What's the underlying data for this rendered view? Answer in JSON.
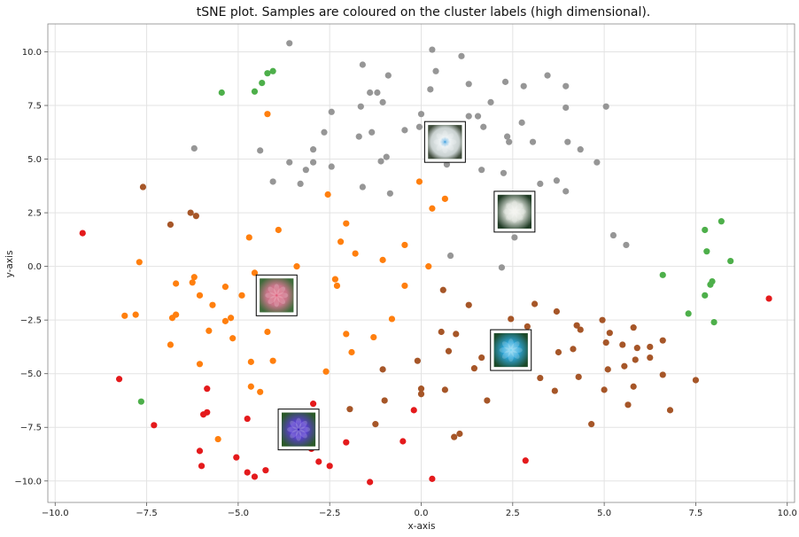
{
  "chart_data": {
    "type": "scatter",
    "title": "tSNE plot. Samples are coloured on the cluster labels (high dimensional).",
    "xlabel": "x-axis",
    "ylabel": "y-axis",
    "xlim": [
      -10.2,
      10.2
    ],
    "ylim": [
      -11.0,
      11.3
    ],
    "grid": true,
    "xticks": [
      -10.0,
      -7.5,
      -5.0,
      -2.5,
      0.0,
      2.5,
      5.0,
      7.5,
      10.0
    ],
    "xtick_labels": [
      "−10.0",
      "−7.5",
      "−5.0",
      "−2.5",
      "0.0",
      "2.5",
      "5.0",
      "7.5",
      "10.0"
    ],
    "yticks": [
      -10.0,
      -7.5,
      -5.0,
      -2.5,
      0.0,
      2.5,
      5.0,
      7.5,
      10.0
    ],
    "ytick_labels": [
      "−10.0",
      "−7.5",
      "−5.0",
      "−2.5",
      "0.0",
      "2.5",
      "5.0",
      "7.5",
      "10.0"
    ],
    "series": [
      {
        "color": "#969696",
        "points": [
          [
            -3.6,
            10.4
          ],
          [
            0.3,
            10.1
          ],
          [
            1.1,
            9.8
          ],
          [
            0.4,
            9.1
          ],
          [
            -1.6,
            9.4
          ],
          [
            -0.9,
            8.9
          ],
          [
            3.45,
            8.9
          ],
          [
            1.3,
            8.5
          ],
          [
            2.3,
            8.6
          ],
          [
            2.8,
            8.4
          ],
          [
            3.95,
            8.4
          ],
          [
            0.25,
            8.25
          ],
          [
            -1.4,
            8.1
          ],
          [
            -1.2,
            8.1
          ],
          [
            -1.05,
            7.65
          ],
          [
            -1.65,
            7.45
          ],
          [
            1.9,
            7.65
          ],
          [
            5.05,
            7.45
          ],
          [
            3.95,
            7.4
          ],
          [
            -2.45,
            7.2
          ],
          [
            0.0,
            7.1
          ],
          [
            1.3,
            7.0
          ],
          [
            1.55,
            7.0
          ],
          [
            2.75,
            6.7
          ],
          [
            1.7,
            6.5
          ],
          [
            -0.45,
            6.35
          ],
          [
            -0.05,
            6.5
          ],
          [
            -2.65,
            6.25
          ],
          [
            -1.35,
            6.25
          ],
          [
            -1.7,
            6.05
          ],
          [
            2.35,
            6.05
          ],
          [
            -2.95,
            5.45
          ],
          [
            -4.4,
            5.4
          ],
          [
            -6.2,
            5.5
          ],
          [
            2.4,
            5.8
          ],
          [
            3.05,
            5.8
          ],
          [
            4.0,
            5.8
          ],
          [
            4.35,
            5.45
          ],
          [
            -0.95,
            5.1
          ],
          [
            -1.1,
            4.9
          ],
          [
            -2.95,
            4.85
          ],
          [
            -3.6,
            4.85
          ],
          [
            -2.45,
            4.65
          ],
          [
            -3.15,
            4.5
          ],
          [
            0.7,
            4.75
          ],
          [
            1.65,
            4.5
          ],
          [
            2.25,
            4.35
          ],
          [
            4.8,
            4.85
          ],
          [
            -4.05,
            3.95
          ],
          [
            -3.3,
            3.85
          ],
          [
            3.25,
            3.85
          ],
          [
            3.7,
            4.0
          ],
          [
            -1.6,
            3.7
          ],
          [
            -0.85,
            3.4
          ],
          [
            3.95,
            3.5
          ],
          [
            0.8,
            0.5
          ],
          [
            2.2,
            -0.05
          ],
          [
            2.55,
            1.35
          ],
          [
            5.25,
            1.45
          ],
          [
            5.6,
            1.0
          ]
        ]
      },
      {
        "color": "#ff7f0e",
        "points": [
          [
            -4.2,
            7.1
          ],
          [
            -0.05,
            3.95
          ],
          [
            0.65,
            3.15
          ],
          [
            0.3,
            2.7
          ],
          [
            -2.55,
            3.35
          ],
          [
            -2.05,
            2.0
          ],
          [
            -3.9,
            1.7
          ],
          [
            -4.7,
            1.35
          ],
          [
            -2.2,
            1.15
          ],
          [
            -0.45,
            1.0
          ],
          [
            -1.8,
            0.6
          ],
          [
            -7.7,
            0.2
          ],
          [
            -3.4,
            0.0
          ],
          [
            -1.05,
            0.3
          ],
          [
            0.2,
            0.0
          ],
          [
            -4.55,
            -0.3
          ],
          [
            -6.2,
            -0.5
          ],
          [
            -6.25,
            -0.75
          ],
          [
            -6.7,
            -0.8
          ],
          [
            -2.35,
            -0.6
          ],
          [
            -2.3,
            -0.9
          ],
          [
            -0.45,
            -0.9
          ],
          [
            -5.35,
            -0.95
          ],
          [
            -6.05,
            -1.35
          ],
          [
            -4.9,
            -1.35
          ],
          [
            -5.7,
            -1.8
          ],
          [
            -6.7,
            -2.25
          ],
          [
            -6.8,
            -2.4
          ],
          [
            -7.8,
            -2.25
          ],
          [
            -8.1,
            -2.3
          ],
          [
            -5.2,
            -2.4
          ],
          [
            -5.35,
            -2.55
          ],
          [
            -0.8,
            -2.45
          ],
          [
            -5.8,
            -3.0
          ],
          [
            -4.2,
            -3.05
          ],
          [
            -2.05,
            -3.15
          ],
          [
            -1.3,
            -3.3
          ],
          [
            -5.15,
            -3.35
          ],
          [
            -6.85,
            -3.65
          ],
          [
            -1.9,
            -4.0
          ],
          [
            -6.05,
            -4.55
          ],
          [
            -4.05,
            -4.4
          ],
          [
            -4.65,
            -4.45
          ],
          [
            -2.6,
            -4.9
          ],
          [
            -4.65,
            -5.6
          ],
          [
            -4.4,
            -5.85
          ],
          [
            -5.55,
            -8.05
          ]
        ]
      },
      {
        "color": "#a65628",
        "points": [
          [
            -7.6,
            3.7
          ],
          [
            -6.3,
            2.5
          ],
          [
            -6.15,
            2.35
          ],
          [
            -6.85,
            1.95
          ],
          [
            0.6,
            -1.1
          ],
          [
            1.3,
            -1.8
          ],
          [
            3.1,
            -1.75
          ],
          [
            3.7,
            -2.1
          ],
          [
            2.45,
            -2.45
          ],
          [
            4.95,
            -2.5
          ],
          [
            2.9,
            -2.8
          ],
          [
            4.25,
            -2.75
          ],
          [
            4.35,
            -2.95
          ],
          [
            5.8,
            -2.85
          ],
          [
            0.55,
            -3.05
          ],
          [
            0.95,
            -3.15
          ],
          [
            5.15,
            -3.1
          ],
          [
            5.05,
            -3.55
          ],
          [
            5.5,
            -3.65
          ],
          [
            6.6,
            -3.45
          ],
          [
            5.9,
            -3.8
          ],
          [
            6.25,
            -3.75
          ],
          [
            3.75,
            -4.0
          ],
          [
            4.15,
            -3.85
          ],
          [
            0.75,
            -3.95
          ],
          [
            -0.1,
            -4.4
          ],
          [
            1.65,
            -4.25
          ],
          [
            1.45,
            -4.75
          ],
          [
            5.85,
            -4.35
          ],
          [
            6.25,
            -4.25
          ],
          [
            5.55,
            -4.65
          ],
          [
            5.1,
            -4.8
          ],
          [
            6.6,
            -5.05
          ],
          [
            4.3,
            -5.15
          ],
          [
            3.25,
            -5.2
          ],
          [
            -1.05,
            -4.8
          ],
          [
            5.0,
            -5.75
          ],
          [
            3.65,
            -5.8
          ],
          [
            5.8,
            -5.6
          ],
          [
            7.5,
            -5.3
          ],
          [
            0.0,
            -5.7
          ],
          [
            0.0,
            -5.95
          ],
          [
            0.65,
            -5.75
          ],
          [
            1.8,
            -6.25
          ],
          [
            -1.0,
            -6.25
          ],
          [
            5.65,
            -6.45
          ],
          [
            6.8,
            -6.7
          ],
          [
            -1.95,
            -6.65
          ],
          [
            4.65,
            -7.35
          ],
          [
            -1.25,
            -7.35
          ],
          [
            1.05,
            -7.8
          ],
          [
            0.9,
            -7.95
          ]
        ]
      },
      {
        "color": "#4daf4a",
        "points": [
          [
            -4.05,
            9.1
          ],
          [
            -4.2,
            9.0
          ],
          [
            -4.35,
            8.55
          ],
          [
            -5.45,
            8.1
          ],
          [
            -4.55,
            8.15
          ],
          [
            8.2,
            2.1
          ],
          [
            7.75,
            1.7
          ],
          [
            7.8,
            0.7
          ],
          [
            8.45,
            0.25
          ],
          [
            7.95,
            -0.7
          ],
          [
            7.9,
            -0.85
          ],
          [
            6.6,
            -0.4
          ],
          [
            7.75,
            -1.35
          ],
          [
            7.3,
            -2.2
          ],
          [
            8.0,
            -2.6
          ],
          [
            -7.65,
            -6.3
          ]
        ]
      },
      {
        "color": "#e41a1c",
        "points": [
          [
            -9.25,
            1.55
          ],
          [
            9.5,
            -1.5
          ],
          [
            -8.25,
            -5.25
          ],
          [
            -5.85,
            -5.7
          ],
          [
            -5.85,
            -6.8
          ],
          [
            -5.95,
            -6.9
          ],
          [
            -4.75,
            -7.1
          ],
          [
            -2.95,
            -6.4
          ],
          [
            -0.2,
            -6.7
          ],
          [
            -7.3,
            -7.4
          ],
          [
            -6.05,
            -8.6
          ],
          [
            -2.05,
            -8.2
          ],
          [
            -0.5,
            -8.15
          ],
          [
            -3.0,
            -8.5
          ],
          [
            -6.0,
            -9.3
          ],
          [
            -5.05,
            -8.9
          ],
          [
            -2.8,
            -9.1
          ],
          [
            2.85,
            -9.05
          ],
          [
            -2.5,
            -9.3
          ],
          [
            -4.25,
            -9.5
          ],
          [
            -4.75,
            -9.6
          ],
          [
            -4.55,
            -9.8
          ],
          [
            -1.4,
            -10.05
          ],
          [
            0.3,
            -9.9
          ]
        ]
      }
    ],
    "thumbnails": [
      {
        "x": 0.65,
        "y": 5.8,
        "subject": "white daisy with blue center"
      },
      {
        "x": 2.55,
        "y": 2.55,
        "subject": "white flower"
      },
      {
        "x": -3.95,
        "y": -1.35,
        "subject": "pink flower"
      },
      {
        "x": 2.45,
        "y": -3.9,
        "subject": "blue rose"
      },
      {
        "x": -3.35,
        "y": -7.6,
        "subject": "purple flower"
      }
    ]
  }
}
